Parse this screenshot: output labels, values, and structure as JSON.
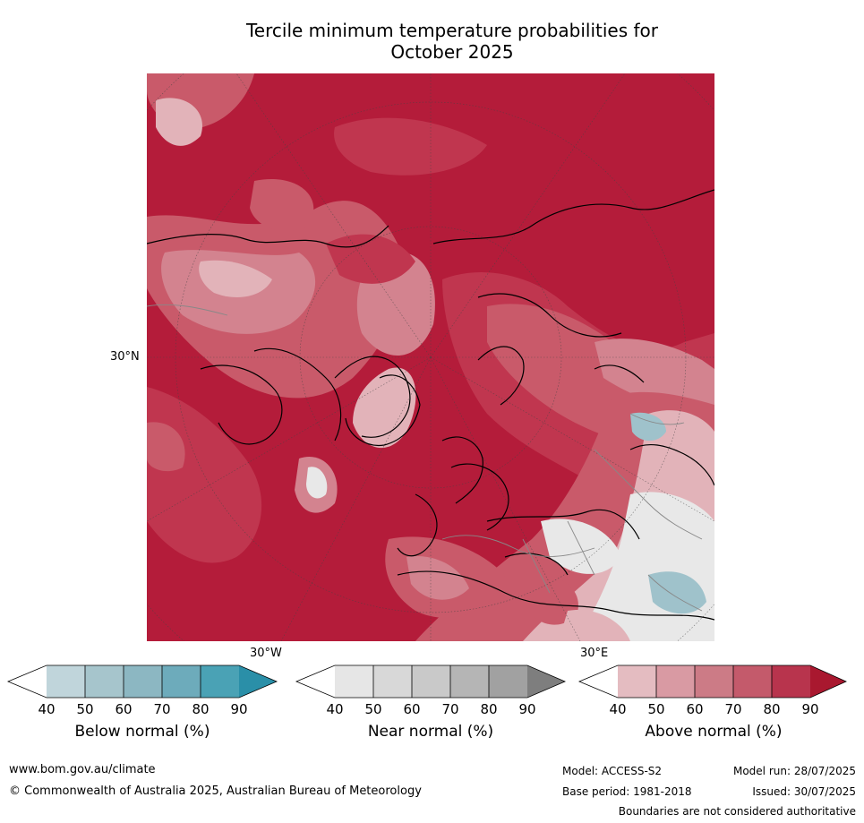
{
  "title_line1": "Tercile minimum temperature probabilities for",
  "title_line2": "October 2025",
  "map": {
    "lat_labels": [
      "30°N",
      "30°W",
      "30°E"
    ]
  },
  "colorbars": [
    {
      "label": "Below normal (%)",
      "ticks": [
        "40",
        "50",
        "60",
        "70",
        "80",
        "90"
      ],
      "colors": [
        "#ffffff",
        "#c0d5db",
        "#a6c5cc",
        "#8cb7c2",
        "#6dabbb",
        "#4aa2b5",
        "#2a8fa8"
      ]
    },
    {
      "label": "Near normal (%)",
      "ticks": [
        "40",
        "50",
        "60",
        "70",
        "80",
        "90"
      ],
      "colors": [
        "#ffffff",
        "#e6e6e6",
        "#d8d8d8",
        "#c9c9c9",
        "#b5b5b5",
        "#a1a1a1",
        "#7e7e7e"
      ]
    },
    {
      "label": "Above normal (%)",
      "ticks": [
        "40",
        "50",
        "60",
        "70",
        "80",
        "90"
      ],
      "colors": [
        "#ffffff",
        "#e4bcc1",
        "#d99aa3",
        "#cc7b86",
        "#c45a6b",
        "#b8344d",
        "#a9182f"
      ]
    }
  ],
  "footer": {
    "website": "www.bom.gov.au/climate",
    "copyright": "© Commonwealth of Australia 2025, Australian Bureau of Meteorology",
    "model": "Model: ACCESS-S2",
    "base_period": "Base period: 1981-2018",
    "model_run": "Model run: 28/07/2025",
    "issued": "Issued: 30/07/2025",
    "disclaimer": "Boundaries are not considered authoritative"
  },
  "colors": {
    "above_90": "#b41c3a",
    "above_80": "#c0364f",
    "above_70": "#c95a6a",
    "above_60": "#d3838f",
    "above_50": "#e2b3b9",
    "near_50": "#e8e8e8",
    "below_60": "#9fc2cb",
    "coast": "#000000",
    "border": "#888888"
  }
}
